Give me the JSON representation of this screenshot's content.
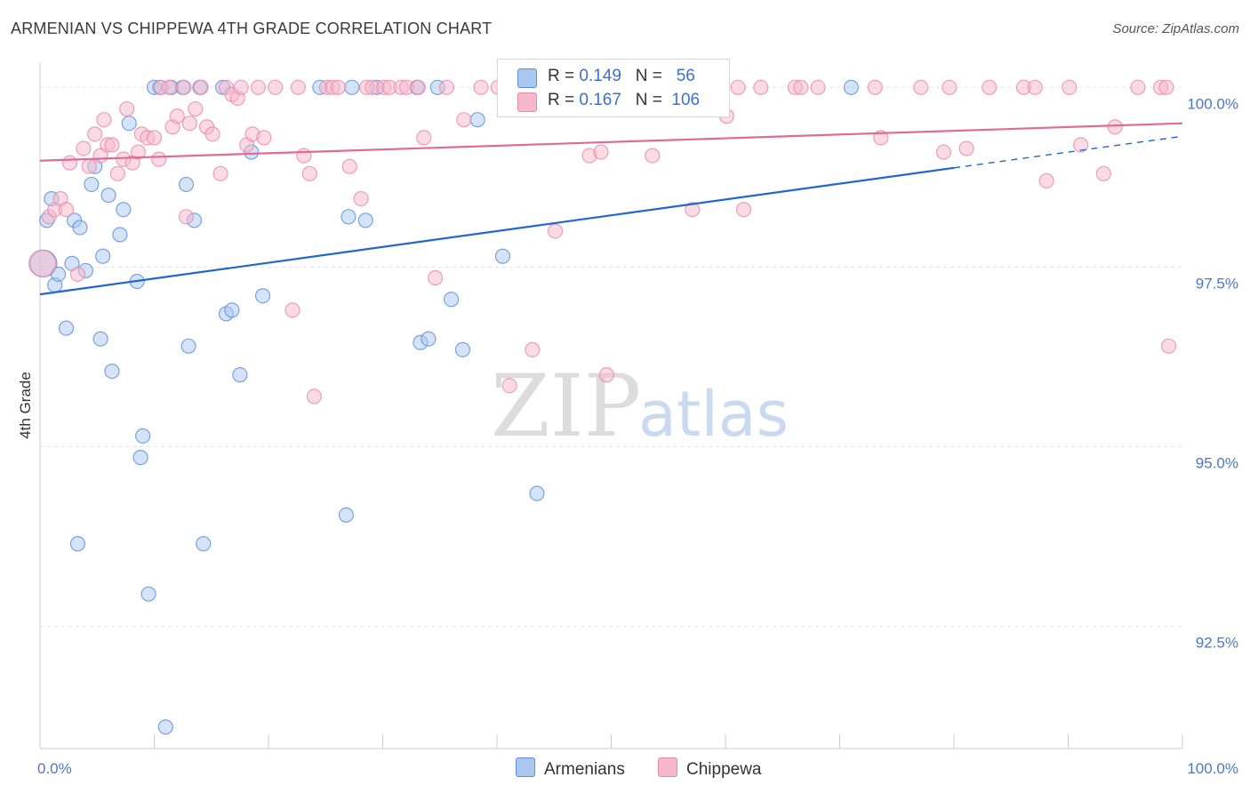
{
  "title": "ARMENIAN VS CHIPPEWA 4TH GRADE CORRELATION CHART",
  "source": "Source: ZipAtlas.com",
  "watermark": {
    "zip": "ZIP",
    "atlas": "atlas"
  },
  "colors": {
    "armenians_fill": "#aac7f0",
    "armenians_stroke": "#5b8fd8",
    "armenians_line": "#2266cc",
    "chippewa_fill": "#f6b8cc",
    "chippewa_stroke": "#e88aa8",
    "chippewa_line": "#e06a95",
    "tick_text": "#4a78c9",
    "grid": "#e3e3e3"
  },
  "legend": {
    "armenians": {
      "r_label": "R = ",
      "r_value": "0.149",
      "n_label": "N = ",
      "n_value": "56"
    },
    "chippewa": {
      "r_label": "R = ",
      "r_value": "0.167",
      "n_label": "N = ",
      "n_value": "106"
    }
  },
  "chart_data": {
    "type": "scatter",
    "xlabel": "",
    "ylabel": "4th Grade",
    "xlim": [
      0,
      100
    ],
    "ylim": [
      90.8,
      100.35
    ],
    "x_tick_labels": [
      {
        "value": 0,
        "label": "0.0%"
      },
      {
        "value": 100,
        "label": "100.0%"
      }
    ],
    "y_ticks": [
      {
        "value": 100,
        "label": "100.0%"
      },
      {
        "value": 97.5,
        "label": "97.5%"
      },
      {
        "value": 95,
        "label": "95.0%"
      },
      {
        "value": 92.5,
        "label": "92.5%"
      }
    ],
    "grid": true,
    "legend_position": "top-center",
    "series": [
      {
        "name": "Armenians",
        "points": [
          [
            0.3,
            97.55
          ],
          [
            0.6,
            98.15
          ],
          [
            1.0,
            98.45
          ],
          [
            1.3,
            97.25
          ],
          [
            1.6,
            97.4
          ],
          [
            2.3,
            96.65
          ],
          [
            2.8,
            97.55
          ],
          [
            3.0,
            98.15
          ],
          [
            3.5,
            98.05
          ],
          [
            4.0,
            97.45
          ],
          [
            4.5,
            98.65
          ],
          [
            4.8,
            98.9
          ],
          [
            5.3,
            96.5
          ],
          [
            5.5,
            97.65
          ],
          [
            6.0,
            98.5
          ],
          [
            6.3,
            96.05
          ],
          [
            7.0,
            97.95
          ],
          [
            7.3,
            98.3
          ],
          [
            7.8,
            99.5
          ],
          [
            8.5,
            97.3
          ],
          [
            8.8,
            94.85
          ],
          [
            9.0,
            95.15
          ],
          [
            9.5,
            92.95
          ],
          [
            10.0,
            100.0
          ],
          [
            10.5,
            100.0
          ],
          [
            11.0,
            91.1
          ],
          [
            11.5,
            100.0
          ],
          [
            12.5,
            100.0
          ],
          [
            12.8,
            98.65
          ],
          [
            13.0,
            96.4
          ],
          [
            13.5,
            98.15
          ],
          [
            14.0,
            100.0
          ],
          [
            14.3,
            93.65
          ],
          [
            16.0,
            100.0
          ],
          [
            16.3,
            96.85
          ],
          [
            16.8,
            96.9
          ],
          [
            17.5,
            96.0
          ],
          [
            18.5,
            99.1
          ],
          [
            19.5,
            97.1
          ],
          [
            24.5,
            100.0
          ],
          [
            26.8,
            94.05
          ],
          [
            27.0,
            98.2
          ],
          [
            27.3,
            100.0
          ],
          [
            28.5,
            98.15
          ],
          [
            29.5,
            100.0
          ],
          [
            33.0,
            100.0
          ],
          [
            33.3,
            96.45
          ],
          [
            34.0,
            96.5
          ],
          [
            34.8,
            100.0
          ],
          [
            36.0,
            97.05
          ],
          [
            37.0,
            96.35
          ],
          [
            38.3,
            99.55
          ],
          [
            40.5,
            97.65
          ],
          [
            43.5,
            94.35
          ],
          [
            71.0,
            100.0
          ],
          [
            3.3,
            93.65
          ]
        ]
      },
      {
        "name": "Chippewa",
        "points": [
          [
            0.2,
            97.55
          ],
          [
            0.8,
            98.2
          ],
          [
            1.3,
            98.3
          ],
          [
            1.8,
            98.45
          ],
          [
            2.3,
            98.3
          ],
          [
            2.6,
            98.95
          ],
          [
            3.3,
            97.4
          ],
          [
            3.8,
            99.15
          ],
          [
            4.3,
            98.9
          ],
          [
            4.8,
            99.35
          ],
          [
            5.3,
            99.05
          ],
          [
            5.6,
            99.55
          ],
          [
            5.9,
            99.2
          ],
          [
            6.3,
            99.2
          ],
          [
            6.8,
            98.8
          ],
          [
            7.3,
            99.0
          ],
          [
            7.6,
            99.7
          ],
          [
            8.1,
            98.95
          ],
          [
            8.6,
            99.1
          ],
          [
            8.9,
            99.35
          ],
          [
            9.4,
            99.3
          ],
          [
            10.0,
            99.3
          ],
          [
            10.4,
            99.0
          ],
          [
            10.6,
            100.0
          ],
          [
            11.3,
            100.0
          ],
          [
            11.6,
            99.45
          ],
          [
            12.0,
            99.6
          ],
          [
            12.6,
            100.0
          ],
          [
            12.8,
            98.2
          ],
          [
            13.1,
            99.5
          ],
          [
            13.6,
            99.7
          ],
          [
            14.1,
            100.0
          ],
          [
            14.6,
            99.45
          ],
          [
            15.1,
            99.35
          ],
          [
            15.8,
            98.8
          ],
          [
            16.3,
            100.0
          ],
          [
            16.8,
            99.9
          ],
          [
            17.3,
            99.85
          ],
          [
            17.6,
            100.0
          ],
          [
            18.1,
            99.2
          ],
          [
            18.6,
            99.35
          ],
          [
            19.1,
            100.0
          ],
          [
            19.6,
            99.3
          ],
          [
            20.6,
            100.0
          ],
          [
            22.1,
            96.9
          ],
          [
            22.6,
            100.0
          ],
          [
            23.1,
            99.05
          ],
          [
            23.6,
            98.8
          ],
          [
            24.0,
            95.7
          ],
          [
            25.1,
            100.0
          ],
          [
            25.6,
            100.0
          ],
          [
            26.1,
            100.0
          ],
          [
            27.1,
            98.9
          ],
          [
            28.1,
            98.45
          ],
          [
            28.6,
            100.0
          ],
          [
            29.1,
            100.0
          ],
          [
            30.1,
            100.0
          ],
          [
            30.6,
            100.0
          ],
          [
            31.6,
            100.0
          ],
          [
            32.1,
            100.0
          ],
          [
            33.1,
            100.0
          ],
          [
            33.6,
            99.3
          ],
          [
            34.6,
            97.35
          ],
          [
            35.6,
            100.0
          ],
          [
            37.1,
            99.55
          ],
          [
            38.6,
            100.0
          ],
          [
            40.1,
            100.0
          ],
          [
            41.1,
            95.85
          ],
          [
            41.6,
            100.0
          ],
          [
            43.1,
            96.35
          ],
          [
            45.1,
            98.0
          ],
          [
            46.1,
            100.0
          ],
          [
            48.1,
            99.05
          ],
          [
            49.1,
            99.1
          ],
          [
            49.6,
            96.0
          ],
          [
            50.1,
            100.0
          ],
          [
            51.1,
            100.0
          ],
          [
            53.1,
            100.0
          ],
          [
            53.6,
            99.05
          ],
          [
            54.6,
            100.0
          ],
          [
            57.1,
            98.3
          ],
          [
            59.1,
            100.0
          ],
          [
            60.1,
            99.6
          ],
          [
            61.1,
            100.0
          ],
          [
            61.6,
            98.3
          ],
          [
            63.1,
            100.0
          ],
          [
            66.1,
            100.0
          ],
          [
            66.6,
            100.0
          ],
          [
            68.1,
            100.0
          ],
          [
            73.1,
            100.0
          ],
          [
            73.6,
            99.3
          ],
          [
            77.1,
            100.0
          ],
          [
            79.1,
            99.1
          ],
          [
            79.6,
            100.0
          ],
          [
            81.1,
            99.15
          ],
          [
            83.1,
            100.0
          ],
          [
            86.1,
            100.0
          ],
          [
            87.1,
            100.0
          ],
          [
            88.1,
            98.7
          ],
          [
            90.1,
            100.0
          ],
          [
            91.1,
            99.2
          ],
          [
            93.1,
            98.8
          ],
          [
            94.1,
            99.45
          ],
          [
            96.1,
            100.0
          ],
          [
            98.1,
            100.0
          ],
          [
            98.6,
            100.0
          ],
          [
            98.8,
            96.4
          ]
        ]
      }
    ],
    "trend_lines": [
      {
        "series": "Armenians",
        "x": [
          0,
          80
        ],
        "y": [
          97.12,
          98.88
        ],
        "dashed_x": [
          80,
          100
        ],
        "dashed_y": [
          98.88,
          99.32
        ]
      },
      {
        "series": "Chippewa",
        "x": [
          0,
          100
        ],
        "y": [
          98.98,
          99.5
        ]
      }
    ]
  },
  "bottom_legend": {
    "armenians": "Armenians",
    "chippewa": "Chippewa"
  }
}
